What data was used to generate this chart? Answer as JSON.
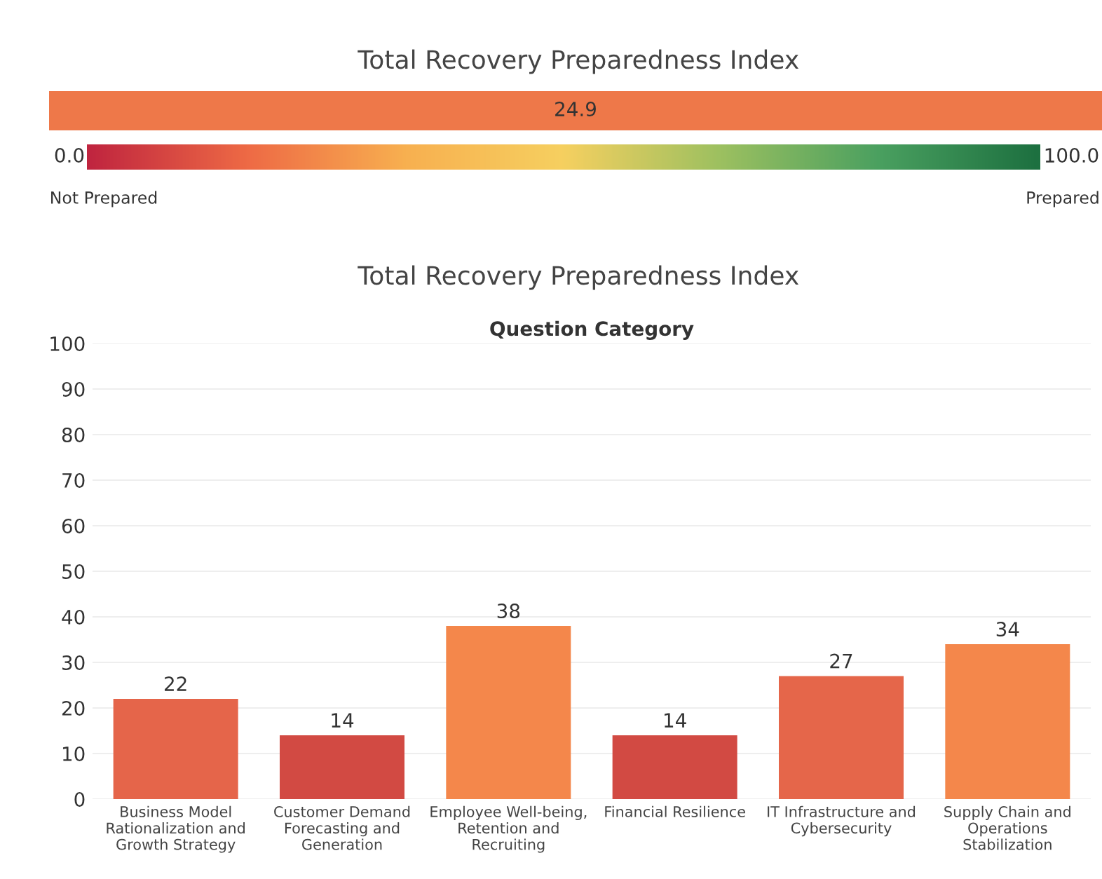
{
  "chart_data": [
    {
      "type": "other",
      "title": "Total Recovery Preparedness Index",
      "values": [
        24.9
      ],
      "colors": [
        "#ee7849"
      ],
      "data_labels": true,
      "annotations": [
        "0.0",
        "100.0",
        "Not Prepared",
        "Prepared"
      ]
    },
    {
      "type": "bar",
      "title": "Total Recovery Preparedness Index",
      "xlabel": "Question Category",
      "categories": [
        "Business Model\nRationalization and\nGrowth Strategy",
        "Customer Demand\nForecasting and\nGeneration",
        "Employee Well-being,\nRetention and\nRecruiting",
        "Financial Resilience",
        "IT Infrastructure and\nCybersecurity",
        "Supply Chain and\nOperations\nStabilization"
      ],
      "values": [
        22,
        14,
        38,
        14,
        27,
        34
      ],
      "colors": [
        "#e5654a",
        "#d24a43",
        "#f4874b",
        "#d24a43",
        "#e5664a",
        "#f4874b"
      ],
      "data_labels": true,
      "ylim": [
        0,
        100
      ],
      "yticks": [
        0,
        10,
        20,
        30,
        40,
        50,
        60,
        70,
        80,
        90,
        100
      ],
      "grid": "y"
    }
  ]
}
